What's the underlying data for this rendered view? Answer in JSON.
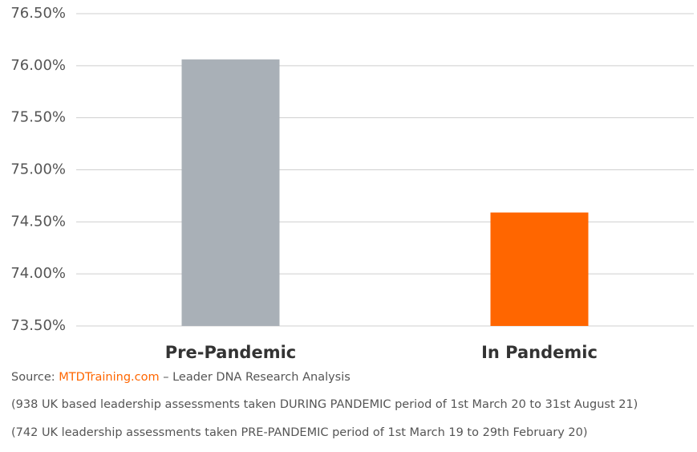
{
  "chart_data": {
    "type": "bar",
    "categories": [
      "Pre-Pandemic",
      "In Pandemic"
    ],
    "values": [
      76.06,
      74.59
    ],
    "colors": [
      "#a9b0b7",
      "#ff6600"
    ],
    "ylim": [
      73.5,
      76.5
    ],
    "yticks": [
      {
        "value": 73.5,
        "label": "73.50%"
      },
      {
        "value": 74,
        "label": "74.00%"
      },
      {
        "value": 74.5,
        "label": "74.50%"
      },
      {
        "value": 75,
        "label": "75.00%"
      },
      {
        "value": 75.5,
        "label": "75.50%"
      },
      {
        "value": 76,
        "label": "76.00%"
      },
      {
        "value": 76.5,
        "label": "76.50%"
      }
    ],
    "grid": true
  },
  "footer": {
    "source_prefix": "Source: ",
    "source_link": "MTDTraining.com",
    "source_suffix": " – Leader DNA Research Analysis",
    "notes": [
      "(938 UK based leadership assessments taken DURING PANDEMIC period of 1st March 20 to 31st August 21)",
      "(742 UK leadership assessments taken PRE-PANDEMIC period of 1st March 19 to 29th February 20)"
    ]
  }
}
